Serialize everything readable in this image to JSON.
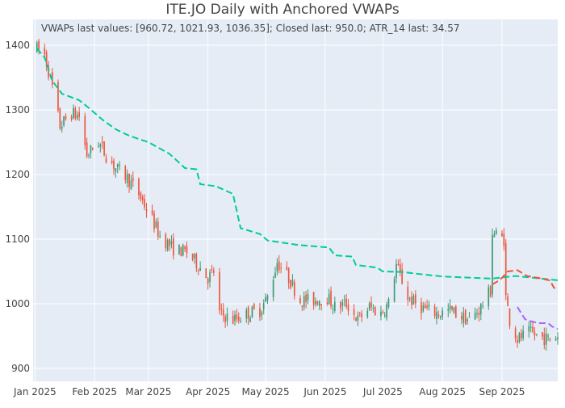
{
  "chart_data": {
    "type": "candlestick",
    "title": "ITE.JO Daily with Anchored VWAPs",
    "annotation": "VWAPs last values: [960.72, 1021.93, 1036.35]; Closed last: 950.0; ATR_14 last: 34.57",
    "x_range": [
      "2024-12-31",
      "2025-09-30"
    ],
    "ylim": [
      880,
      1440
    ],
    "y_ticks": [
      900,
      1000,
      1100,
      1200,
      1300,
      1400
    ],
    "x_ticks": [
      {
        "date": "2025-01-01",
        "label": "Jan 2025"
      },
      {
        "date": "2025-02-01",
        "label": "Feb 2025"
      },
      {
        "date": "2025-03-01",
        "label": "Mar 2025"
      },
      {
        "date": "2025-04-01",
        "label": "Apr 2025"
      },
      {
        "date": "2025-05-01",
        "label": "May 2025"
      },
      {
        "date": "2025-06-01",
        "label": "Jun 2025"
      },
      {
        "date": "2025-07-01",
        "label": "Jul 2025"
      },
      {
        "date": "2025-08-01",
        "label": "Aug 2025"
      },
      {
        "date": "2025-09-01",
        "label": "Sep 2025"
      }
    ],
    "grid": true,
    "legend": "none",
    "colors": {
      "background": "#e5ecf6",
      "grid": "#ffffff",
      "increasing": "#2ca02c",
      "decreasing": "#ef553b",
      "increasing_candle": "#3d9970",
      "vwap_1": "#00cc96",
      "vwap_2": "#ef553b",
      "vwap_3": "#ab63fa"
    },
    "price_path": [
      [
        "2025-01-02",
        1395
      ],
      [
        "2025-01-06",
        1385
      ],
      [
        "2025-01-10",
        1335
      ],
      [
        "2025-01-14",
        1275
      ],
      [
        "2025-01-20",
        1295
      ],
      [
        "2025-01-24",
        1290
      ],
      [
        "2025-01-28",
        1230
      ],
      [
        "2025-02-03",
        1250
      ],
      [
        "2025-02-07",
        1230
      ],
      [
        "2025-02-12",
        1210
      ],
      [
        "2025-02-18",
        1195
      ],
      [
        "2025-02-24",
        1170
      ],
      [
        "2025-03-03",
        1130
      ],
      [
        "2025-03-07",
        1105
      ],
      [
        "2025-03-14",
        1085
      ],
      [
        "2025-03-21",
        1080
      ],
      [
        "2025-03-27",
        1060
      ],
      [
        "2025-04-01",
        1040
      ],
      [
        "2025-04-04",
        1050
      ],
      [
        "2025-04-07",
        985
      ],
      [
        "2025-04-14",
        975
      ],
      [
        "2025-04-22",
        985
      ],
      [
        "2025-04-28",
        990
      ],
      [
        "2025-05-02",
        1010
      ],
      [
        "2025-05-07",
        1065
      ],
      [
        "2025-05-13",
        1040
      ],
      [
        "2025-05-19",
        1005
      ],
      [
        "2025-05-26",
        1005
      ],
      [
        "2025-06-02",
        1010
      ],
      [
        "2025-06-06",
        995
      ],
      [
        "2025-06-12",
        1000
      ],
      [
        "2025-06-18",
        975
      ],
      [
        "2025-06-24",
        995
      ],
      [
        "2025-06-30",
        985
      ],
      [
        "2025-07-04",
        1000
      ],
      [
        "2025-07-08",
        1060
      ],
      [
        "2025-07-14",
        1010
      ],
      [
        "2025-07-18",
        1000
      ],
      [
        "2025-07-24",
        990
      ],
      [
        "2025-07-30",
        985
      ],
      [
        "2025-08-05",
        990
      ],
      [
        "2025-08-11",
        980
      ],
      [
        "2025-08-15",
        975
      ],
      [
        "2025-08-20",
        990
      ],
      [
        "2025-08-26",
        1020
      ],
      [
        "2025-08-27",
        1110
      ],
      [
        "2025-09-02",
        1100
      ],
      [
        "2025-09-03",
        1010
      ],
      [
        "2025-09-05",
        975
      ],
      [
        "2025-09-09",
        945
      ],
      [
        "2025-09-15",
        955
      ],
      [
        "2025-09-20",
        950
      ],
      [
        "2025-09-25",
        945
      ],
      [
        "2025-09-29",
        950
      ]
    ],
    "vwap_series": [
      {
        "color": "#00cc96",
        "points": [
          [
            "2025-01-02",
            1395
          ],
          [
            "2025-01-06",
            1381
          ],
          [
            "2025-01-10",
            1345
          ],
          [
            "2025-01-15",
            1325
          ],
          [
            "2025-01-24",
            1315
          ],
          [
            "2025-01-29",
            1303
          ],
          [
            "2025-02-05",
            1285
          ],
          [
            "2025-02-12",
            1270
          ],
          [
            "2025-02-19",
            1260
          ],
          [
            "2025-03-01",
            1250
          ],
          [
            "2025-03-12",
            1232
          ],
          [
            "2025-03-20",
            1210
          ],
          [
            "2025-03-26",
            1208
          ],
          [
            "2025-03-28",
            1185
          ],
          [
            "2025-04-05",
            1182
          ],
          [
            "2025-04-14",
            1170
          ],
          [
            "2025-04-18",
            1117
          ],
          [
            "2025-04-28",
            1108
          ],
          [
            "2025-05-02",
            1098
          ],
          [
            "2025-05-18",
            1091
          ],
          [
            "2025-06-03",
            1087
          ],
          [
            "2025-06-06",
            1075
          ],
          [
            "2025-06-15",
            1073
          ],
          [
            "2025-06-17",
            1060
          ],
          [
            "2025-06-28",
            1056
          ],
          [
            "2025-07-01",
            1050
          ],
          [
            "2025-07-12",
            1049
          ],
          [
            "2025-07-17",
            1047
          ],
          [
            "2025-08-02",
            1042
          ],
          [
            "2025-08-27",
            1039
          ],
          [
            "2025-09-08",
            1043
          ],
          [
            "2025-09-30",
            1036.35
          ]
        ]
      },
      {
        "color": "#ef553b",
        "points": [
          [
            "2025-08-27",
            1030
          ],
          [
            "2025-08-31",
            1037
          ],
          [
            "2025-09-04",
            1050
          ],
          [
            "2025-09-09",
            1052
          ],
          [
            "2025-09-14",
            1043
          ],
          [
            "2025-09-20",
            1040
          ],
          [
            "2025-09-26",
            1036
          ],
          [
            "2025-09-28",
            1025
          ],
          [
            "2025-09-30",
            1021.93
          ]
        ]
      },
      {
        "color": "#ab63fa",
        "points": [
          [
            "2025-09-09",
            995
          ],
          [
            "2025-09-13",
            976
          ],
          [
            "2025-09-16",
            973
          ],
          [
            "2025-09-20",
            970
          ],
          [
            "2025-09-25",
            970
          ],
          [
            "2025-09-27",
            965
          ],
          [
            "2025-09-30",
            960.72
          ]
        ]
      }
    ]
  }
}
